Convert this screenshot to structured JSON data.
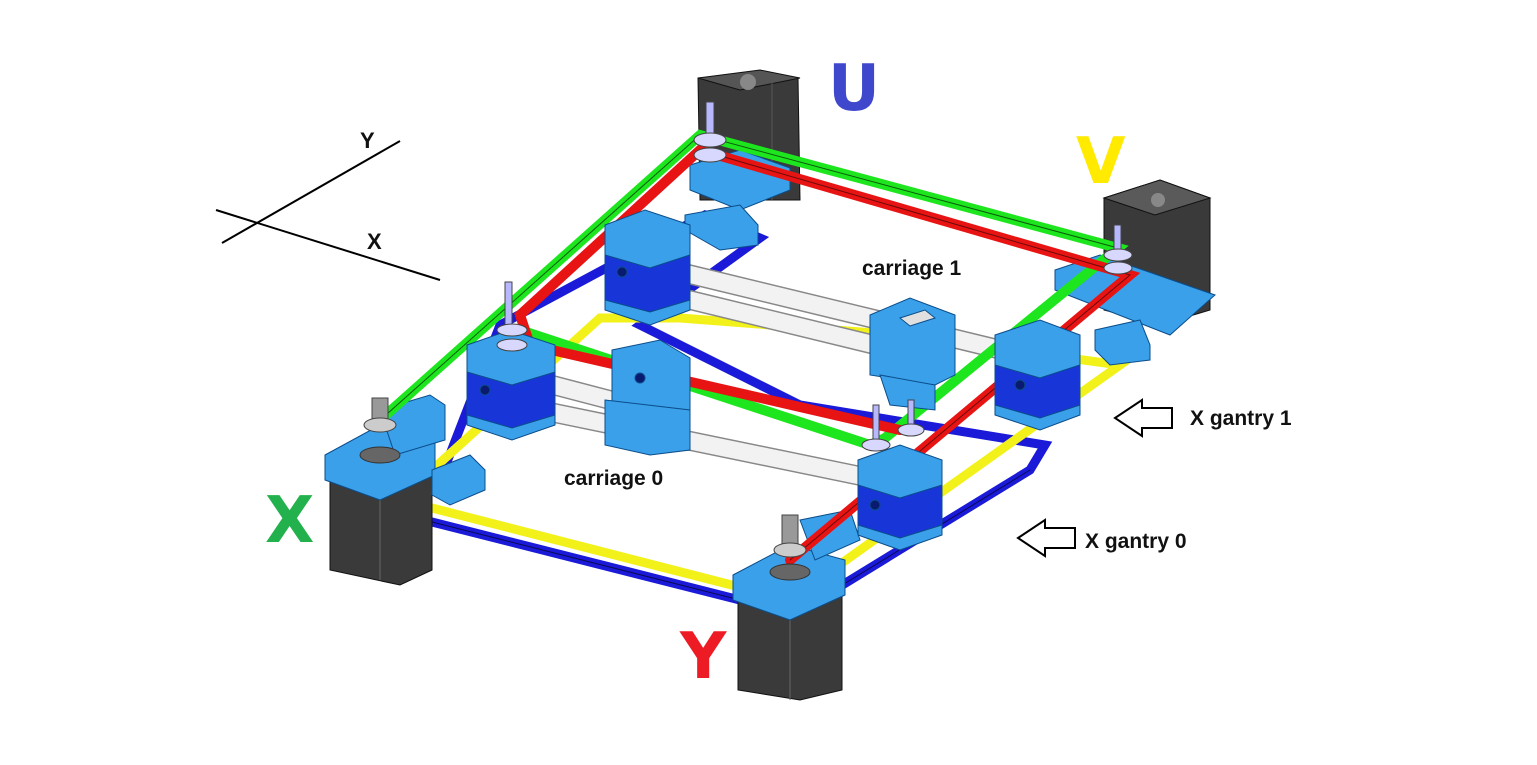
{
  "axes": {
    "y_label": "Y",
    "x_label": "X"
  },
  "motors": {
    "u": {
      "label": "U",
      "color": "#3f48cc"
    },
    "v": {
      "label": "V",
      "color": "#ffea00"
    },
    "x": {
      "label": "X",
      "color": "#22b14c"
    },
    "y": {
      "label": "Y",
      "color": "#ed1c24"
    }
  },
  "labels": {
    "carriage_1": "carriage 1",
    "carriage_0": "carriage 0",
    "x_gantry_1": "X gantry 1",
    "x_gantry_0": "X gantry 0"
  },
  "colors": {
    "belt_green": "#1ee61e",
    "belt_red": "#e81414",
    "belt_blue": "#1a1ad8",
    "belt_yellow": "#f2f21a",
    "part_blue": "#3aa0ea",
    "part_dark_blue": "#1836d8",
    "motor_gray": "#3a3a3a",
    "rod_white": "#f2f2f2"
  }
}
